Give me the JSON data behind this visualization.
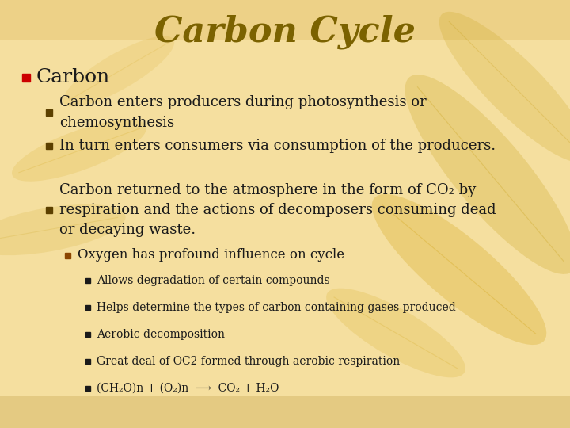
{
  "title": "Carbon Cycle",
  "title_color": "#7B6200",
  "title_fontsize": 32,
  "bg_color": "#F5DFA0",
  "bg_top_color": "#D4B870",
  "bg_bottom_color": "#E8C878",
  "bullet_red": "#CC0000",
  "bullet_dark": "#5C4000",
  "text_color": "#1A1A1A",
  "main_bullet_text": "Carbon",
  "main_bullet_fontsize": 18,
  "sub_fontsize": 13,
  "sub_sub_fontsize": 12,
  "sss_fontsize": 10,
  "sub_bullets": [
    "Carbon enters producers during photosynthesis or\nchemosynthesis",
    "In turn enters consumers via consumption of the producers.",
    "Carbon returned to the atmosphere in the form of CO₂ by\nrespiration and the actions of decomposers consuming dead\nor decaying waste."
  ],
  "sub_sub_bullet": "Oxygen has profound influence on cycle",
  "sss_bullets": [
    "Allows degradation of certain compounds",
    "Helps determine the types of carbon containing gases produced",
    "Aerobic decomposition",
    "Great deal of OC2 formed through aerobic respiration",
    "(CH₂O)n + (O₂)n  ⟶  CO₂ + H₂O"
  ]
}
